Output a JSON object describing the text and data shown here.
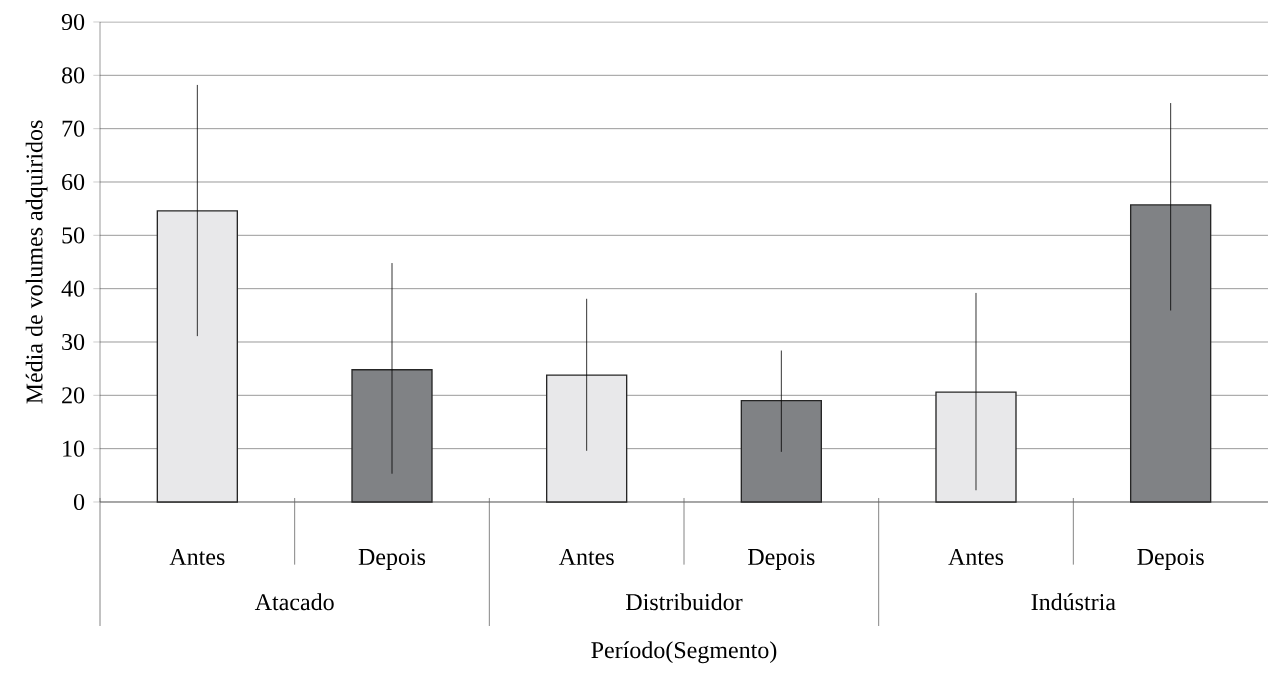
{
  "chart_data": {
    "type": "bar",
    "xlabel": "Período(Segmento)",
    "ylabel": "Média de volumes adquiridos",
    "categories": [
      "Antes",
      "Depois",
      "Antes",
      "Depois",
      "Antes",
      "Depois"
    ],
    "values": [
      54.6,
      24.8,
      23.8,
      19.0,
      20.6,
      55.7
    ],
    "colors": [
      "#e8e8ea",
      "#808285",
      "#e8e8ea",
      "#808285",
      "#e8e8ea",
      "#808285"
    ],
    "errors": [
      [
        31.1,
        78.2
      ],
      [
        5.3,
        44.8
      ],
      [
        9.6,
        38.1
      ],
      [
        9.4,
        28.4
      ],
      [
        2.2,
        39.2
      ],
      [
        35.9,
        74.8
      ]
    ],
    "ylim": [
      0,
      90
    ],
    "yticks": [
      0,
      10,
      20,
      30,
      40,
      50,
      60,
      70,
      80,
      90
    ],
    "grid": "y",
    "annotations": [
      "Atacado",
      "Distribuidor",
      "Indústria"
    ]
  }
}
